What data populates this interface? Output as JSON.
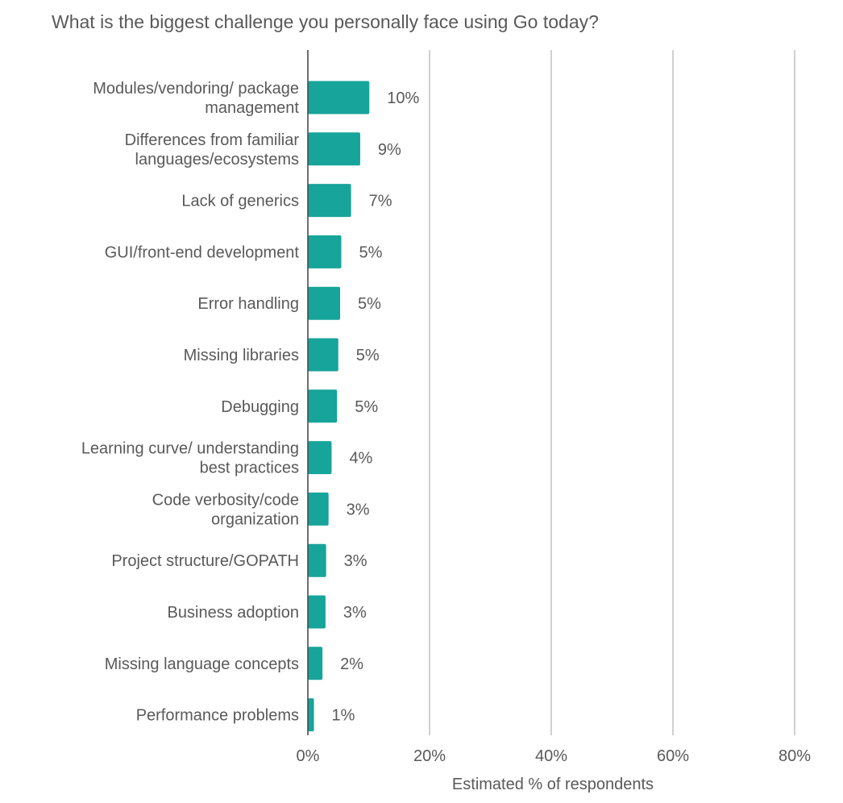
{
  "chart_data": {
    "type": "bar",
    "orientation": "horizontal",
    "title": "What is the biggest challenge you personally face using Go today?",
    "xlabel": "Estimated % of respondents",
    "ylabel": "",
    "xlim": [
      0,
      80
    ],
    "x_ticks": [
      "0%",
      "20%",
      "40%",
      "60%",
      "80%"
    ],
    "grid": "vertical",
    "bar_color": "#17a49a",
    "categories": [
      [
        "Modules/vendoring/ package",
        "management"
      ],
      [
        "Differences from familiar",
        "languages/ecosystems"
      ],
      [
        "Lack of generics"
      ],
      [
        "GUI/front-end development"
      ],
      [
        "Error handling"
      ],
      [
        "Missing libraries"
      ],
      [
        "Debugging"
      ],
      [
        "Learning curve/ understanding",
        "best practices"
      ],
      [
        "Code verbosity/code",
        "organization"
      ],
      [
        "Project structure/GOPATH"
      ],
      [
        "Business adoption"
      ],
      [
        "Missing language concepts"
      ],
      [
        "Performance problems"
      ]
    ],
    "values": [
      10.1,
      8.6,
      7.1,
      5.5,
      5.3,
      5.0,
      4.8,
      3.9,
      3.4,
      3.0,
      2.9,
      2.4,
      1.0
    ],
    "value_labels": [
      "10%",
      "9%",
      "7%",
      "5%",
      "5%",
      "5%",
      "5%",
      "4%",
      "3%",
      "3%",
      "3%",
      "2%",
      "1%"
    ]
  }
}
